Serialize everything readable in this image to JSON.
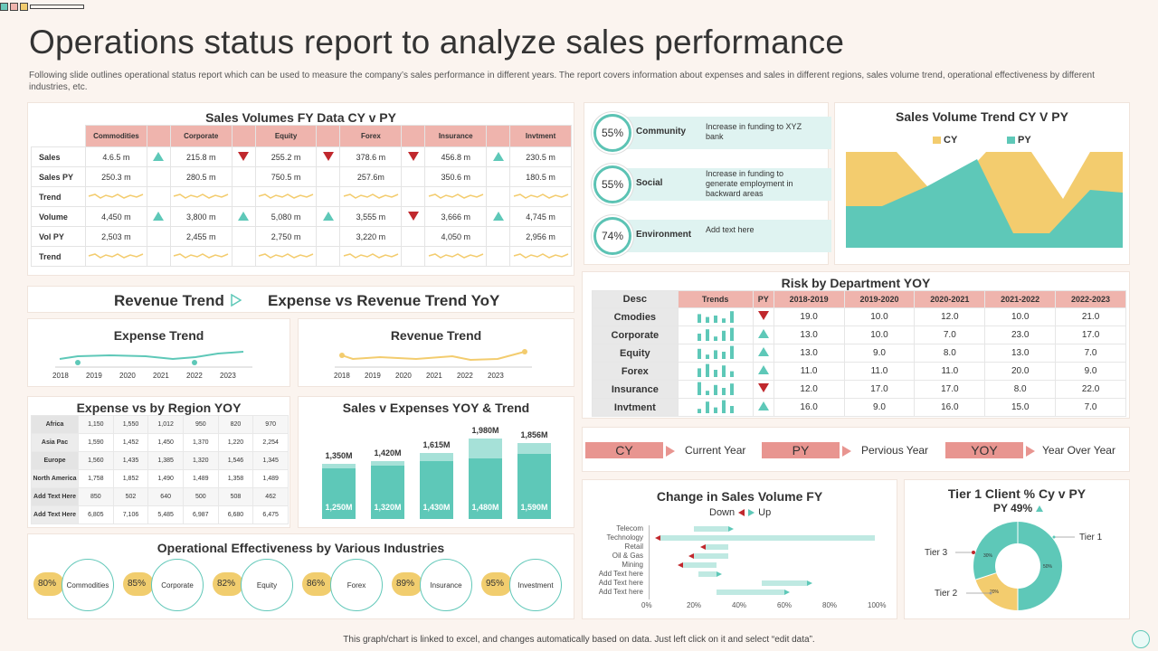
{
  "title": "Operations status report to analyze sales performance",
  "subtitle": "Following slide outlines operational status report which can be used to measure the company’s sales performance in different years. The report covers information about expenses and sales in different regions, sales volume trend, operational effectiveness by different industries, etc.",
  "footer": "This graph/chart is linked to excel, and changes automatically based on data. Just left click on it and select “edit data”.",
  "colors": {
    "teal": "#5ec8b8",
    "yellow": "#f3cc6e",
    "pink": "#efb4ad",
    "red": "#c0282d"
  },
  "sales_volumes": {
    "title": "Sales Volumes FY Data CY v PY",
    "columns": [
      "Commodities",
      "Corporate",
      "Equity",
      "Forex",
      "Insurance",
      "Invtment"
    ],
    "row_labels": [
      "Sales",
      "Sales PY",
      "Trend",
      "Volume",
      "Vol PY",
      "Trend"
    ],
    "sales": [
      "4.6.5 m",
      "215.8 m",
      "255.2 m",
      "378.6 m",
      "456.8 m",
      "230.5 m"
    ],
    "sales_icons": [
      "up",
      "up",
      "down",
      "down",
      "down",
      "up"
    ],
    "sales_py": [
      "250.3 m",
      "280.5 m",
      "750.5 m",
      "257.6m",
      "350.6 m",
      "180.5 m"
    ],
    "volume": [
      "4,450 m",
      "3,800 m",
      "5,080 m",
      "3,555 m",
      "3,666 m",
      "4,745 m"
    ],
    "volume_icons": [
      "up",
      "up",
      "up",
      "up",
      "down",
      "up"
    ],
    "vol_py": [
      "2,503 m",
      "2,455 m",
      "2,750 m",
      "3,220 m",
      "4,050 m",
      "2,956 m"
    ]
  },
  "social": [
    {
      "pct": "55%",
      "label": "Community",
      "desc": "Increase in funding to XYZ bank"
    },
    {
      "pct": "55%",
      "label": "Social",
      "desc": "Increase in funding to generate employment in backward areas"
    },
    {
      "pct": "74%",
      "label": "Environment",
      "desc": "Add text here"
    }
  ],
  "trend_cy_py": {
    "title": "Sales Volume Trend CY V PY",
    "legend_cy": "CY",
    "legend_py": "PY"
  },
  "revenue_header": {
    "left": "Revenue Trend",
    "right": "Expense vs Revenue Trend YoY"
  },
  "expense_trend": {
    "title": "Expense Trend",
    "years": [
      "2018",
      "2019",
      "2020",
      "2021",
      "2022",
      "2023"
    ]
  },
  "revenue_trend": {
    "title": "Revenue Trend",
    "years": [
      "2018",
      "2019",
      "2020",
      "2021",
      "2022",
      "2023"
    ]
  },
  "risk": {
    "title": "Risk by Department YOY",
    "headers": [
      "Desc",
      "Trends",
      "PY",
      "2018-2019",
      "2019-2020",
      "2020-2021",
      "2021-2022",
      "2022-2023"
    ],
    "rows": [
      {
        "label": "Cmodies",
        "py": "down",
        "vals": [
          "19.0",
          "10.0",
          "12.0",
          "10.0",
          "21.0"
        ]
      },
      {
        "label": "Corporate",
        "py": "up",
        "vals": [
          "13.0",
          "10.0",
          "7.0",
          "23.0",
          "17.0"
        ]
      },
      {
        "label": "Equity",
        "py": "up",
        "vals": [
          "13.0",
          "9.0",
          "8.0",
          "13.0",
          "7.0"
        ]
      },
      {
        "label": "Forex",
        "py": "up",
        "vals": [
          "11.0",
          "11.0",
          "11.0",
          "20.0",
          "9.0"
        ]
      },
      {
        "label": "Insurance",
        "py": "down",
        "vals": [
          "12.0",
          "17.0",
          "17.0",
          "8.0",
          "22.0"
        ]
      },
      {
        "label": "Invtment",
        "py": "up",
        "vals": [
          "16.0",
          "9.0",
          "16.0",
          "15.0",
          "7.0"
        ]
      }
    ]
  },
  "region": {
    "title": "Expense vs by Region YOY",
    "rows": [
      {
        "label": "Africa",
        "vals": [
          "1,150",
          "1,550",
          "1,012",
          "950",
          "820",
          "970"
        ]
      },
      {
        "label": "Asia Pac",
        "vals": [
          "1,590",
          "1,452",
          "1,450",
          "1,370",
          "1,220",
          "2,254"
        ]
      },
      {
        "label": "Europe",
        "vals": [
          "1,560",
          "1,435",
          "1,385",
          "1,320",
          "1,546",
          "1,345"
        ]
      },
      {
        "label": "North America",
        "vals": [
          "1,758",
          "1,852",
          "1,490",
          "1,489",
          "1,358",
          "1,489"
        ]
      },
      {
        "label": "Add Text Here",
        "vals": [
          "850",
          "502",
          "640",
          "500",
          "508",
          "462"
        ]
      },
      {
        "label": "Add Text Here",
        "vals": [
          "6,805",
          "7,106",
          "5,485",
          "6,987",
          "6,680",
          "6,475"
        ]
      }
    ]
  },
  "legend": [
    {
      "box": "CY",
      "text": "Current Year"
    },
    {
      "box": "PY",
      "text": "Pervious Year"
    },
    {
      "box": "YOY",
      "text": "Year Over Year"
    }
  ],
  "sales_expenses": {
    "title": "Sales v Expenses YOY & Trend",
    "top_labels": [
      "1,350M",
      "1,420M",
      "1,615M",
      "1,980M",
      "1,856M"
    ],
    "bottom_labels": [
      "1,250M",
      "1,320M",
      "1,430M",
      "1,480M",
      "1,590M"
    ]
  },
  "change_volume": {
    "title": "Change in Sales Volume FY",
    "down_label": "Down",
    "up_label": "Up",
    "categories": [
      "Telecom",
      "Technology",
      "Retail",
      "Oil & Gas",
      "Mining",
      "Add Text here",
      "Add Text here",
      "Add Text here"
    ],
    "axis": [
      "0%",
      "20%",
      "40%",
      "60%",
      "80%",
      "100%"
    ]
  },
  "tier": {
    "title": "Tier 1 Client % Cy v PY",
    "subtitle": "PY 49%",
    "labels": [
      "Tier 1",
      "Tier 2",
      "Tier 3"
    ],
    "slices": [
      {
        "name": "Tier 1",
        "pct": "50%"
      },
      {
        "name": "Tier 2",
        "pct": "20%"
      },
      {
        "name": "Tier 3",
        "pct": "30%"
      }
    ]
  },
  "operational": {
    "title": "Operational Effectiveness  by Various Industries",
    "items": [
      {
        "pct": "80%",
        "label": "Commodities"
      },
      {
        "pct": "85%",
        "label": "Corporate"
      },
      {
        "pct": "82%",
        "label": "Equity"
      },
      {
        "pct": "86%",
        "label": "Forex"
      },
      {
        "pct": "89%",
        "label": "Insurance"
      },
      {
        "pct": "95%",
        "label": "Investment"
      }
    ]
  }
}
